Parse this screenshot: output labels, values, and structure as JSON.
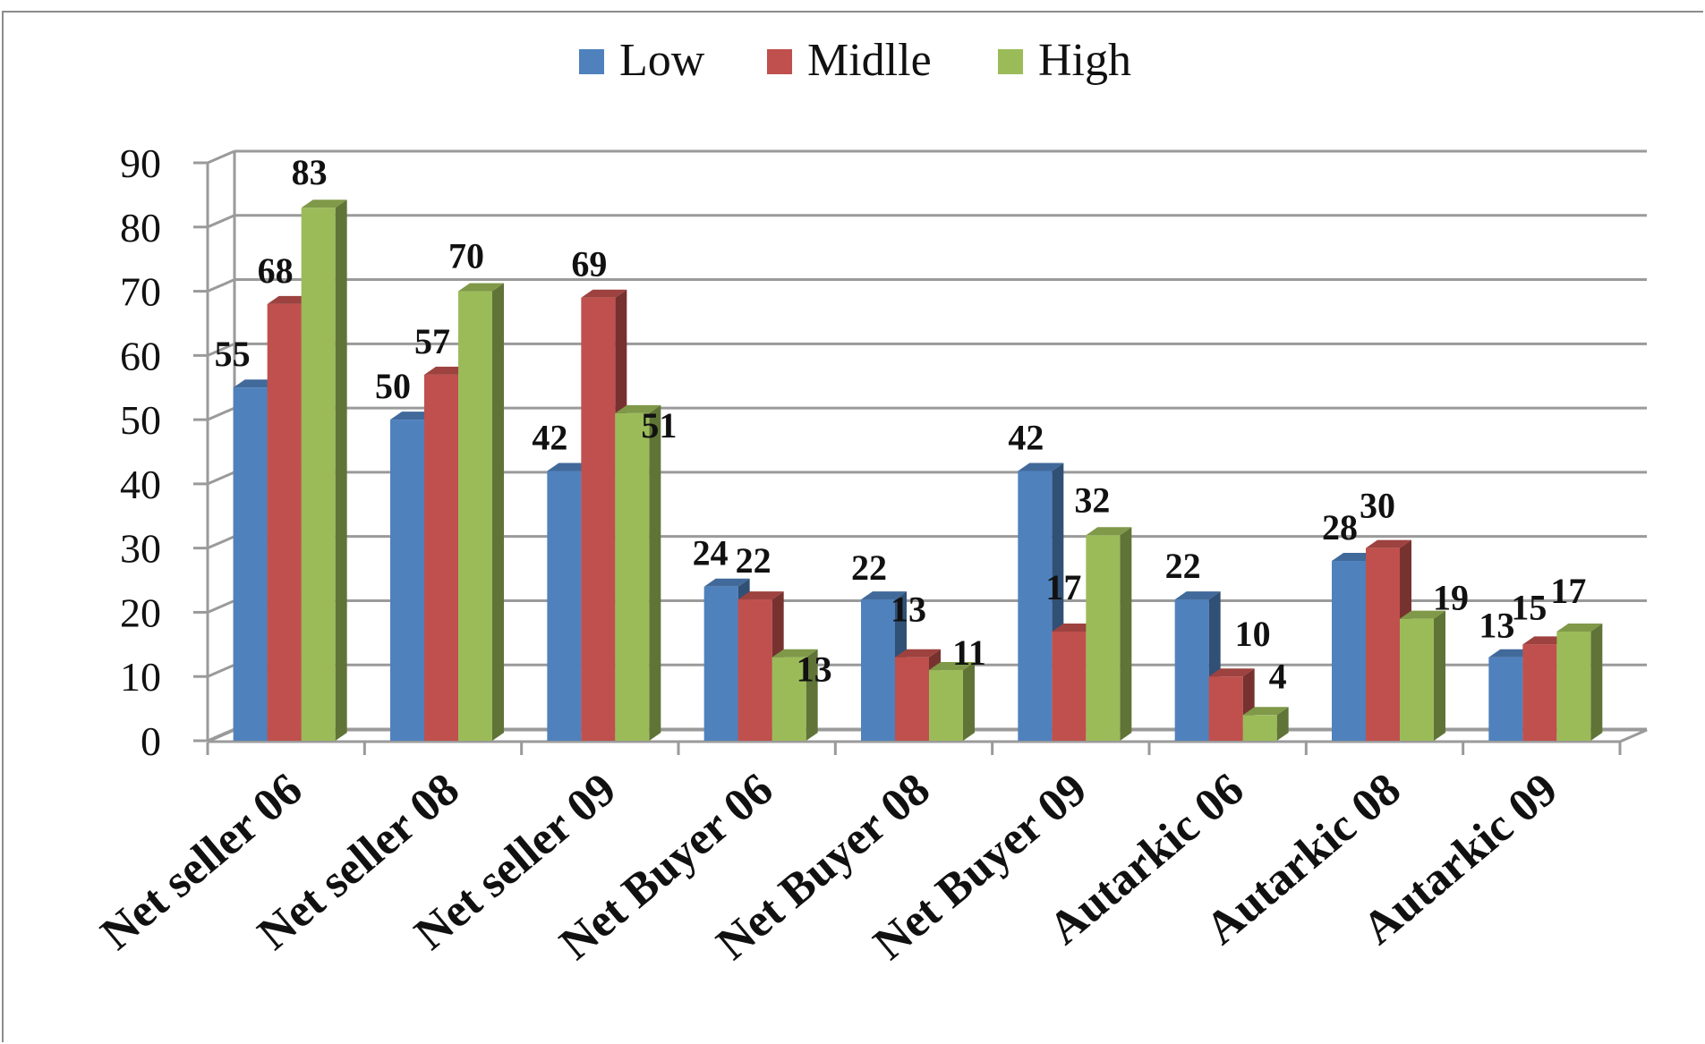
{
  "chart_data": {
    "type": "bar",
    "title": "",
    "xlabel": "",
    "ylabel": "",
    "ylim": [
      0,
      90
    ],
    "yticks": [
      "0",
      "10",
      "20",
      "30",
      "40",
      "50",
      "60",
      "70",
      "80",
      "90"
    ],
    "grid": true,
    "legend_position": "top",
    "categories": [
      "Net seller 06",
      "Net seller 08",
      "Net seller 09",
      "Net Buyer 06",
      "Net Buyer 08",
      "Net Buyer 09",
      "Autarkic 06",
      "Autarkic 08",
      "Autarkic 09"
    ],
    "series": [
      {
        "name": "Low",
        "color": "#4f81bd",
        "values": [
          55,
          50,
          42,
          24,
          22,
          42,
          22,
          28,
          13
        ]
      },
      {
        "name": "Midlle",
        "color": "#c0504d",
        "values": [
          68,
          57,
          69,
          22,
          13,
          17,
          10,
          30,
          15
        ]
      },
      {
        "name": "High",
        "color": "#9bbb59",
        "values": [
          83,
          70,
          51,
          13,
          11,
          32,
          4,
          19,
          17
        ]
      }
    ]
  }
}
